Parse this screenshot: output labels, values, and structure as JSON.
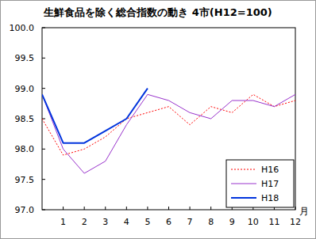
{
  "chart_data": {
    "type": "line",
    "title": "生鮮食品を除く総合指数の動き 4市(H12=100)",
    "x_label": "月",
    "categories": [
      null,
      "1",
      "2",
      "3",
      "4",
      "5",
      "6",
      "7",
      "8",
      "9",
      "10",
      "11",
      "12"
    ],
    "series": [
      {
        "name": "H16",
        "color": "#ff0000",
        "line_style": "dotted",
        "values": [
          98.5,
          97.9,
          98.0,
          98.2,
          98.5,
          98.6,
          98.7,
          98.4,
          98.7,
          98.6,
          98.9,
          98.7,
          98.8
        ]
      },
      {
        "name": "H17",
        "color": "#9933cc",
        "line_style": "solid",
        "values": [
          98.9,
          98.0,
          97.6,
          97.8,
          98.4,
          98.9,
          98.8,
          98.6,
          98.5,
          98.8,
          98.8,
          98.7,
          98.9
        ]
      },
      {
        "name": "H18",
        "color": "#0033dd",
        "line_style": "thick",
        "values": [
          98.9,
          98.1,
          98.1,
          98.3,
          98.5,
          99.0,
          null,
          null,
          null,
          null,
          null,
          null,
          null
        ]
      }
    ],
    "ylim": [
      97.0,
      100.0
    ],
    "yticks": [
      {
        "value": 97,
        "label": "97.0"
      },
      97.5,
      {
        "value": 98,
        "label": "98.0"
      },
      98.5,
      {
        "value": 99,
        "label": "99.0"
      },
      99.5,
      {
        "value": 100,
        "label": "100.0"
      }
    ],
    "grid": false,
    "legend": "lower right"
  }
}
